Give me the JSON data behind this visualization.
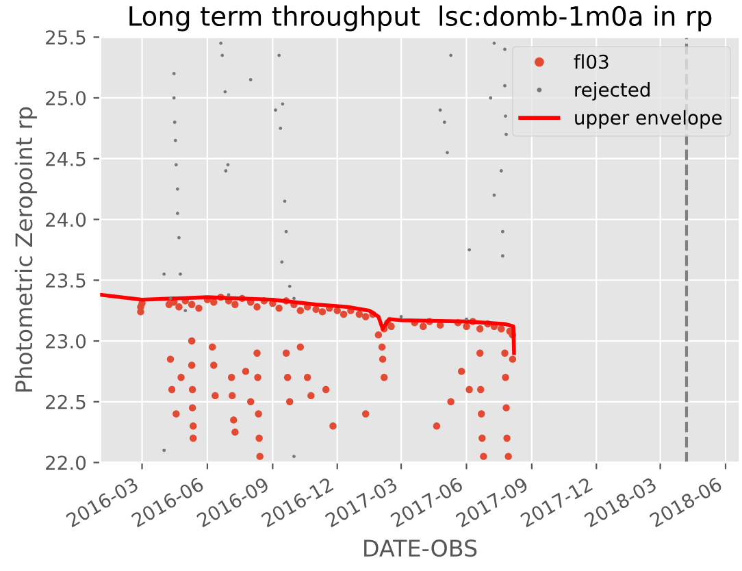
{
  "chart_data": {
    "type": "scatter",
    "title": "Long term throughput  lsc:domb-1m0a in rp",
    "xlabel": "DATE-OBS",
    "ylabel": "Photometric Zeropoint rp",
    "xlim": [
      "2016-01-02",
      "2018-06-21"
    ],
    "ylim": [
      22.0,
      25.5
    ],
    "xticks": [
      "2016-03",
      "2016-06",
      "2016-09",
      "2016-12",
      "2017-03",
      "2017-06",
      "2017-09",
      "2017-12",
      "2018-03",
      "2018-06"
    ],
    "yticks": [
      {
        "value": 22,
        "label": "22.0"
      },
      22.5,
      {
        "value": 23,
        "label": "23.0"
      },
      23.5,
      {
        "value": 24,
        "label": "24.0"
      },
      24.5,
      {
        "value": 25,
        "label": "25.0"
      },
      25.5
    ],
    "grid": true,
    "legend": "top right",
    "ref_lines": [
      {
        "axis": "x",
        "value": "2018-04-07",
        "label": null,
        "color": "#808080",
        "line_style": "dashed"
      }
    ],
    "series": [
      {
        "name": "fl03",
        "marker": "circle",
        "color": "#e24a33",
        "x": [
          "2016-02-28",
          "2016-02-28",
          "2016-03-01",
          "2016-04-08",
          "2016-04-15",
          "2016-04-22",
          "2016-05-01",
          "2016-05-10",
          "2016-05-20",
          "2016-06-01",
          "2016-06-10",
          "2016-06-20",
          "2016-07-01",
          "2016-07-10",
          "2016-07-20",
          "2016-08-01",
          "2016-08-10",
          "2016-08-20",
          "2016-09-01",
          "2016-09-10",
          "2016-09-20",
          "2016-10-01",
          "2016-10-10",
          "2016-10-20",
          "2016-11-01",
          "2016-11-10",
          "2016-11-20",
          "2016-12-01",
          "2016-12-10",
          "2016-12-20",
          "2017-01-01",
          "2017-01-10",
          "2017-01-20",
          "2017-01-28",
          "2017-02-02",
          "2017-02-05",
          "2017-02-10",
          "2017-02-15",
          "2017-03-20",
          "2017-04-01",
          "2017-04-10",
          "2017-04-25",
          "2017-05-20",
          "2017-06-01",
          "2017-06-10",
          "2017-06-20",
          "2017-07-01",
          "2017-07-10",
          "2017-07-20",
          "2017-08-01",
          "2017-08-05",
          "2016-04-10",
          "2016-04-12",
          "2016-04-18",
          "2016-04-25",
          "2016-05-10",
          "2016-05-10",
          "2016-05-11",
          "2016-05-11",
          "2016-05-12",
          "2016-05-12",
          "2016-06-08",
          "2016-06-10",
          "2016-06-12",
          "2016-07-05",
          "2016-07-06",
          "2016-07-08",
          "2016-07-10",
          "2016-07-25",
          "2016-08-01",
          "2016-08-10",
          "2016-08-11",
          "2016-08-12",
          "2016-08-13",
          "2016-08-14",
          "2016-09-20",
          "2016-09-22",
          "2016-09-25",
          "2016-10-10",
          "2016-10-20",
          "2016-10-25",
          "2016-11-15",
          "2016-11-25",
          "2017-01-10",
          "2017-02-03",
          "2017-02-05",
          "2017-04-20",
          "2017-05-10",
          "2017-05-25",
          "2017-06-05",
          "2017-06-20",
          "2017-06-21",
          "2017-06-22",
          "2017-06-23",
          "2017-06-25",
          "2017-07-25",
          "2017-07-26",
          "2017-07-27",
          "2017-07-28",
          "2017-07-30",
          "2017-08-05"
        ],
        "values": [
          23.28,
          23.24,
          23.31,
          23.3,
          23.32,
          23.28,
          23.33,
          23.3,
          23.27,
          23.34,
          23.32,
          23.36,
          23.33,
          23.3,
          23.35,
          23.32,
          23.28,
          23.33,
          23.31,
          23.27,
          23.33,
          23.3,
          23.25,
          23.28,
          23.26,
          23.24,
          23.27,
          23.25,
          23.22,
          23.25,
          23.22,
          23.2,
          23.22,
          23.05,
          22.95,
          23.1,
          23.15,
          23.12,
          23.15,
          23.12,
          23.16,
          23.13,
          23.15,
          23.12,
          23.16,
          23.1,
          23.14,
          23.12,
          23.1,
          23.08,
          23.05,
          22.85,
          22.6,
          22.4,
          22.7,
          23.0,
          22.8,
          22.6,
          22.45,
          22.3,
          22.2,
          22.95,
          22.8,
          22.55,
          22.7,
          22.55,
          22.35,
          22.25,
          22.75,
          22.5,
          22.9,
          22.7,
          22.4,
          22.2,
          22.05,
          22.9,
          22.7,
          22.5,
          22.95,
          22.7,
          22.55,
          22.6,
          22.3,
          22.4,
          22.85,
          22.7,
          22.3,
          22.5,
          22.75,
          22.6,
          22.9,
          22.6,
          22.4,
          22.2,
          22.05,
          22.9,
          22.7,
          22.45,
          22.2,
          22.05,
          22.85
        ]
      },
      {
        "name": "rejected",
        "marker": "circle",
        "color": "#777777",
        "x": [
          "2016-04-10",
          "2016-04-15",
          "2016-04-15",
          "2016-04-16",
          "2016-04-17",
          "2016-04-18",
          "2016-04-20",
          "2016-04-20",
          "2016-04-22",
          "2016-04-24",
          "2016-04-01",
          "2016-04-01",
          "2016-06-20",
          "2016-06-22",
          "2016-06-27",
          "2016-06-26",
          "2016-06-30",
          "2016-08-01",
          "2016-09-05",
          "2016-09-12",
          "2016-09-18",
          "2016-09-20",
          "2016-09-14",
          "2016-09-25",
          "2016-09-15",
          "2016-09-10",
          "2016-10-01",
          "2017-05-10",
          "2017-04-25",
          "2017-05-01",
          "2017-05-05",
          "2017-06-05",
          "2017-07-10",
          "2017-07-05",
          "2017-07-10",
          "2017-07-25",
          "2017-07-25",
          "2017-07-26",
          "2017-07-27",
          "2017-07-20",
          "2017-07-22",
          "2017-07-22",
          "2016-05-01",
          "2016-07-01",
          "2016-10-01",
          "2017-03-01",
          "2017-06-01"
        ],
        "values": [
          23.35,
          25.2,
          25.0,
          24.8,
          24.65,
          24.45,
          24.25,
          24.05,
          23.85,
          23.55,
          23.55,
          22.1,
          25.45,
          25.35,
          24.4,
          25.05,
          24.45,
          25.15,
          24.9,
          24.75,
          24.15,
          23.9,
          23.65,
          23.45,
          24.95,
          25.35,
          22.05,
          25.35,
          24.9,
          24.8,
          24.55,
          23.75,
          25.45,
          25.0,
          24.2,
          25.4,
          25.1,
          24.85,
          24.7,
          24.4,
          23.9,
          23.7,
          23.25,
          23.38,
          23.35,
          23.2,
          23.18
        ]
      },
      {
        "name": "upper envelope",
        "type": "line",
        "marker": "none",
        "line_style": "solid",
        "color": "#ff0000",
        "x": [
          "2016-01-02",
          "2016-03-01",
          "2016-06-01",
          "2016-09-01",
          "2016-11-01",
          "2016-12-15",
          "2017-01-15",
          "2017-01-28",
          "2017-02-03",
          "2017-02-12",
          "2017-03-01",
          "2017-06-01",
          "2017-07-25",
          "2017-08-06",
          "2017-08-07"
        ],
        "values": [
          23.38,
          23.34,
          23.36,
          23.34,
          23.3,
          23.28,
          23.25,
          23.2,
          23.1,
          23.18,
          23.17,
          23.16,
          23.14,
          23.12,
          22.9
        ]
      }
    ]
  }
}
